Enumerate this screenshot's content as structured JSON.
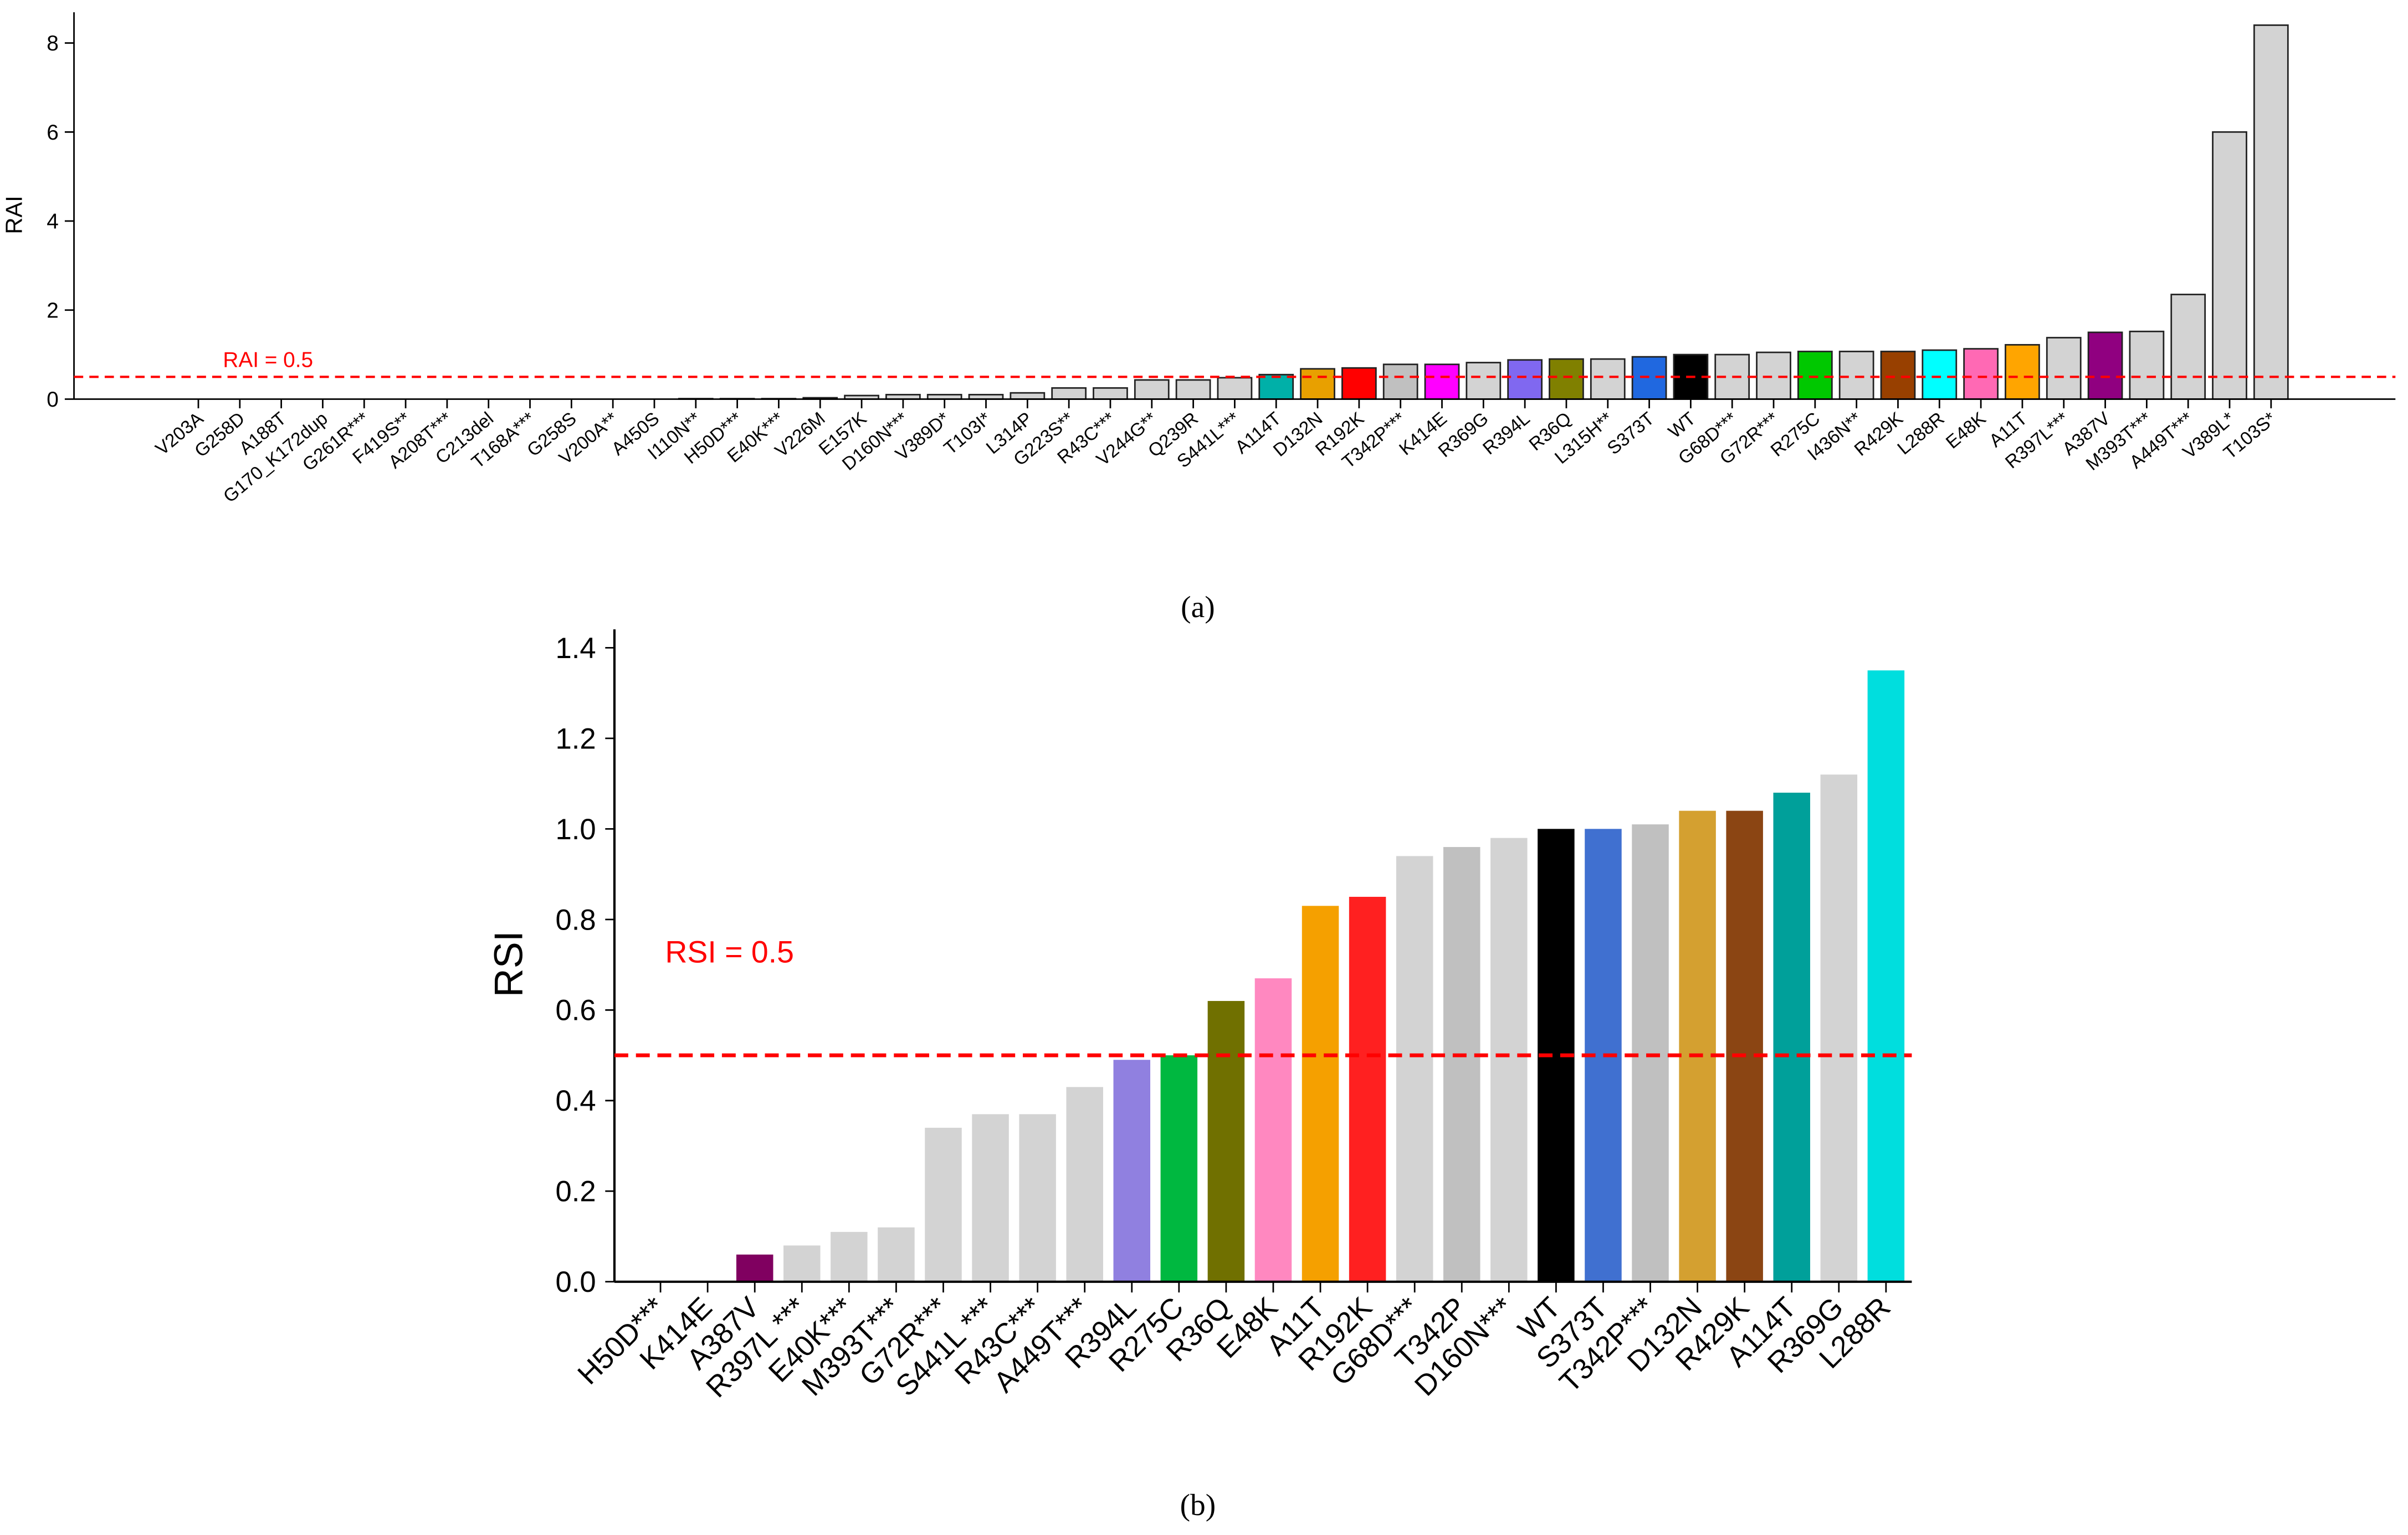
{
  "chart_data": [
    {
      "type": "bar",
      "panel_label": "(a)",
      "ylabel": "RAI",
      "ylim": [
        0,
        8.6
      ],
      "yticks": [
        "0",
        "2",
        "4",
        "6",
        "8"
      ],
      "threshold": {
        "value": 0.5,
        "label": "RAI = 0.5",
        "color": "#ff0000"
      },
      "categories": [
        "V203A",
        "G258D",
        "A188T",
        "G170_K172dup",
        "G261R***",
        "F419S**",
        "A208T***",
        "C213del",
        "T168A***",
        "G258S",
        "V200A**",
        "A450S",
        "I110N**",
        "H50D***",
        "E40K***",
        "V226M",
        "E157K",
        "D160N***",
        "V389D*",
        "T103I*",
        "L314P",
        "G223S**",
        "R43C***",
        "V244G**",
        "Q239R",
        "S441L***",
        "A114T",
        "D132N",
        "R192K",
        "T342P***",
        "K414E",
        "R369G",
        "R394L",
        "R36Q",
        "L315H**",
        "S373T",
        "WT",
        "G68D***",
        "G72R***",
        "R275C",
        "I436N**",
        "R429K",
        "L288R",
        "E48K",
        "A11T",
        "R397L***",
        "A387V",
        "M393T***",
        "A449T***",
        "V389L*",
        "T103S*"
      ],
      "values": [
        0,
        0,
        0,
        0,
        0,
        0,
        0,
        0,
        0,
        0,
        0,
        0,
        0.01,
        0.01,
        0.01,
        0.03,
        0.08,
        0.1,
        0.1,
        0.1,
        0.14,
        0.25,
        0.25,
        0.43,
        0.43,
        0.48,
        0.55,
        0.68,
        0.7,
        0.78,
        0.78,
        0.82,
        0.88,
        0.9,
        0.9,
        0.95,
        1.0,
        1.0,
        1.05,
        1.07,
        1.07,
        1.07,
        1.1,
        1.13,
        1.22,
        1.38,
        1.5,
        1.52,
        2.35,
        6.0,
        8.4
      ],
      "colors": {
        "A114T": "#00b0a8",
        "D132N": "#e8a000",
        "R192K": "#ff0000",
        "T342P***": "#c0c0c0",
        "K414E": "#ff00ff",
        "R394L": "#8068f0",
        "R36Q": "#808000",
        "S373T": "#2068e0",
        "WT": "#000000",
        "R275C": "#00c800",
        "R429K": "#984000",
        "L288R": "#00ffff",
        "E48K": "#ff69b4",
        "A11T": "#ffa500",
        "A387V": "#900080"
      },
      "default_color": "#d3d3d3"
    },
    {
      "type": "bar",
      "panel_label": "(b)",
      "ylabel": "RSI",
      "ylim": [
        0,
        1.4
      ],
      "yticks": [
        "0.0",
        "0.2",
        "0.4",
        "0.6",
        "0.8",
        "1.0",
        "1.2",
        "1.4"
      ],
      "threshold": {
        "value": 0.5,
        "label": "RSI = 0.5",
        "color": "#ff0000"
      },
      "categories": [
        "H50D***",
        "K414E",
        "A387V",
        "R397L ***",
        "E40K***",
        "M393T***",
        "G72R***",
        "S441L ***",
        "R43C***",
        "A449T***",
        "R394L",
        "R275C",
        "R36Q",
        "E48K",
        "A11T",
        "R192K",
        "G68D***",
        "T342P",
        "D160N***",
        "WT",
        "S373T",
        "T342P***",
        "D132N",
        "R429K",
        "A114T",
        "R369G",
        "L288R"
      ],
      "values": [
        0,
        0,
        0.06,
        0.08,
        0.11,
        0.12,
        0.34,
        0.37,
        0.37,
        0.43,
        0.49,
        0.5,
        0.62,
        0.67,
        0.83,
        0.85,
        0.94,
        0.96,
        0.98,
        1.0,
        1.0,
        1.01,
        1.04,
        1.04,
        1.08,
        1.12,
        1.35
      ],
      "colors": {
        "A387V": "#800060",
        "R394L": "#9080e0",
        "R275C": "#00b840",
        "R36Q": "#707000",
        "E48K": "#ff88c0",
        "A11T": "#f5a000",
        "R192K": "#ff2020",
        "T342P": "#c0c0c0",
        "WT": "#000000",
        "S373T": "#4070d0",
        "T342P***": "#c0c0c0",
        "D132N": "#d4a030",
        "R429K": "#8b4513",
        "A114T": "#00a09a",
        "L288R": "#00dede"
      },
      "default_color": "#d3d3d3"
    }
  ]
}
